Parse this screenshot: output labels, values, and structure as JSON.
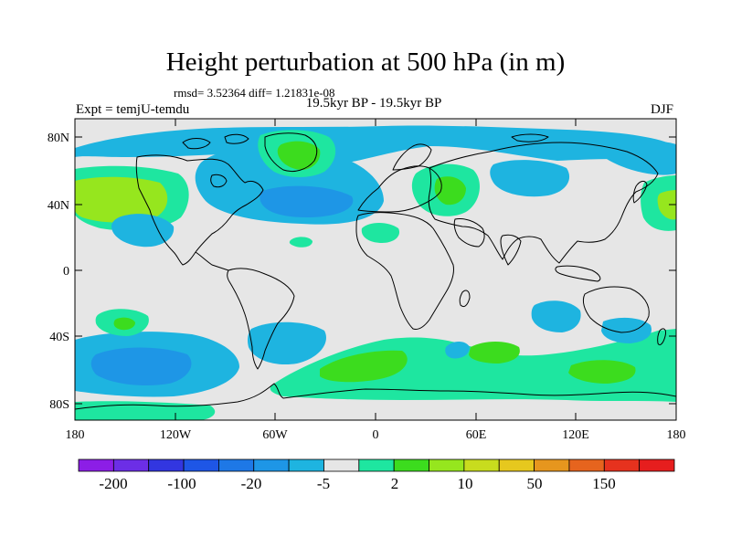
{
  "title": "Height perturbation at 500 hPa (in m)",
  "stats": "rmsd= 3.52364 diff= 1.21831e-08",
  "experiment": "Expt = temjU-temdu",
  "period": "19.5kyr BP - 19.5kyr BP",
  "season": "DJF",
  "colors": {
    "background": "#e6e6e6",
    "coast": "#000000"
  },
  "lat_ticks": [
    "80N",
    "40N",
    "0",
    "40S",
    "80S"
  ],
  "lon_ticks": [
    "180",
    "120W",
    "60W",
    "0",
    "60E",
    "120E",
    "180"
  ],
  "colorbar": {
    "colors": [
      "#8c1ee6",
      "#6c2ee6",
      "#3236e0",
      "#1e56e6",
      "#1e78e6",
      "#1e96e6",
      "#1eb4e0",
      "#e6e6e6",
      "#1ee6a0",
      "#3cdc1e",
      "#96e61e",
      "#c8dc1e",
      "#e6c81e",
      "#e6961e",
      "#e6641e",
      "#e6321e",
      "#e61e1e"
    ],
    "labels": [
      "-200",
      "-100",
      "-20",
      "-5",
      "2",
      "10",
      "50",
      "150"
    ]
  }
}
